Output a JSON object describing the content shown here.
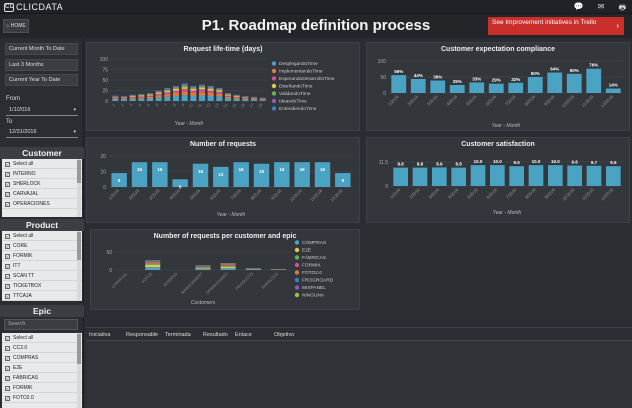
{
  "app": {
    "brand": "CLICDATA",
    "brand_mark": "CD"
  },
  "header": {
    "home_label": "HOME",
    "title": "P1. Roadmap definition process",
    "improve_button": "See Improvement initiatives in Trello"
  },
  "sidebar": {
    "quick_ranges": [
      "Current Month To Date",
      "Last 3 Months",
      "Current Year To Date"
    ],
    "from_label": "From",
    "from_value": "1/1/2016",
    "to_label": "To",
    "to_value": "12/31/2016",
    "customer_title": "Customer",
    "customers": [
      "Select all",
      "INTERNO",
      "SHERLOCK",
      "CARVAJAL",
      "OPERACIONES"
    ],
    "product_title": "Product",
    "products": [
      "Select all",
      "CORE",
      "FORMIK",
      "ITT",
      "SCAN TT",
      "TICKETBOX",
      "TTCAJA"
    ],
    "epic_title": "Epic",
    "search_placeholder": "Search",
    "epics": [
      "Select all",
      "CC2.0",
      "COMPRAS",
      "E2E",
      "FÁBRICAS",
      "FORMIK",
      "FOTO2.0"
    ]
  },
  "panels": {
    "lifetime_title": "Request life-time (days)",
    "compliance_title": "Customer expectation compliance",
    "requests_title": "Number of requests",
    "satisfaction_title": "Customer satisfaction",
    "per_customer_title": "Number of requests per customer and epic"
  },
  "table": {
    "headers": [
      "Iniciativa",
      "Responsable",
      "Terminada",
      "Resultado",
      "Enlace",
      "Objetivo"
    ]
  },
  "colors": {
    "bar": "#4ba3c3",
    "accent_red": "#c9302c",
    "panel": "#33363b"
  },
  "chart_data": [
    {
      "type": "bar",
      "title": "Request life-time (days)",
      "xlabel": "Year - Month",
      "ylabel": "",
      "ylim": [
        0,
        100
      ],
      "yticks": [
        0,
        25,
        50,
        75,
        100
      ],
      "categories": [
        "1",
        "2",
        "3",
        "4",
        "5",
        "6",
        "7",
        "8",
        "9",
        "10",
        "11",
        "12",
        "13",
        "14",
        "15",
        "16",
        "17",
        "18"
      ],
      "series": [
        {
          "name": "DesplegandoTime",
          "color": "#4ba3c3",
          "values": [
            5,
            4,
            5,
            5,
            6,
            8,
            10,
            12,
            14,
            12,
            13,
            12,
            11,
            6,
            5,
            4,
            3,
            2
          ]
        },
        {
          "name": "ImplementandoTime",
          "color": "#e07b39",
          "values": [
            2,
            2,
            3,
            3,
            4,
            5,
            6,
            7,
            8,
            7,
            8,
            7,
            6,
            4,
            3,
            2,
            2,
            1
          ]
        },
        {
          "name": "EsperandoDesarrolloTime",
          "color": "#c9529a",
          "values": [
            2,
            2,
            2,
            3,
            3,
            4,
            5,
            6,
            7,
            6,
            7,
            6,
            5,
            3,
            2,
            2,
            1,
            1
          ]
        },
        {
          "name": "DiseñandoTime",
          "color": "#e8c547",
          "values": [
            1,
            1,
            2,
            2,
            2,
            3,
            3,
            4,
            4,
            4,
            4,
            4,
            3,
            2,
            2,
            1,
            1,
            1
          ]
        },
        {
          "name": "ValidandoTime",
          "color": "#67b34f",
          "values": [
            1,
            1,
            1,
            2,
            2,
            2,
            3,
            3,
            4,
            3,
            3,
            3,
            3,
            2,
            1,
            1,
            1,
            1
          ]
        },
        {
          "name": "IdeandoTime",
          "color": "#8e5ab8",
          "values": [
            1,
            1,
            1,
            1,
            1,
            2,
            2,
            2,
            3,
            2,
            2,
            2,
            2,
            1,
            1,
            1,
            1,
            1
          ]
        },
        {
          "name": "EntendiendoTime",
          "color": "#3f7fbf",
          "values": [
            1,
            1,
            1,
            1,
            1,
            1,
            2,
            2,
            2,
            2,
            2,
            2,
            1,
            1,
            1,
            1,
            1,
            1
          ]
        }
      ]
    },
    {
      "type": "bar",
      "title": "Customer expectation compliance",
      "xlabel": "Year - Month",
      "ylim": [
        0,
        100
      ],
      "yticks": [
        0,
        50,
        100
      ],
      "categories": [
        "1/2016",
        "2/2016",
        "3/2016",
        "4/2016",
        "5/2016",
        "6/2016",
        "7/2016",
        "8/2016",
        "9/2016",
        "10/2016",
        "11/2016",
        "12/2016"
      ],
      "values": [
        56,
        44,
        39,
        25,
        33,
        29,
        32,
        50,
        64,
        60,
        76,
        14
      ],
      "labels": [
        "56%",
        "44%",
        "39%",
        "25%",
        "33%",
        "29%",
        "32%",
        "50%",
        "64%",
        "60%",
        "76%",
        "14%"
      ]
    },
    {
      "type": "bar",
      "title": "Number of requests",
      "xlabel": "Year - Month",
      "ylim": [
        0,
        20
      ],
      "yticks": [
        0,
        10,
        20
      ],
      "categories": [
        "1/2016",
        "2/2016",
        "3/2016",
        "4/2016",
        "5/2016",
        "6/2016",
        "7/2016",
        "8/2016",
        "9/2016",
        "10/2016",
        "11/2016",
        "12/2016"
      ],
      "values": [
        9,
        16,
        16,
        5,
        15,
        13,
        16,
        15,
        16,
        16,
        16,
        9
      ]
    },
    {
      "type": "bar",
      "title": "Customer satisfaction",
      "xlabel": "Year - Month",
      "ylim": [
        0,
        11.5
      ],
      "yticks": [
        0,
        11.5
      ],
      "categories": [
        "1/2016",
        "2/2016",
        "3/2016",
        "4/2016",
        "5/2016",
        "6/2016",
        "7/2016",
        "8/2016",
        "9/2016",
        "10/2016",
        "11/2016",
        "12/2016"
      ],
      "values": [
        8.8,
        8.8,
        8.9,
        8.8,
        10.0,
        10.0,
        9.5,
        10.0,
        10.0,
        9.8,
        9.7,
        9.5
      ],
      "labels": [
        "8.8",
        "8.8",
        "8.9",
        "8.8",
        "10.0",
        "10.0",
        "9.5",
        "10.0",
        "10.0",
        "9.8",
        "9.7",
        "9.5"
      ]
    },
    {
      "type": "bar",
      "title": "Number of requests per customer and epic",
      "xlabel": "Customers",
      "ylim": [
        0,
        50
      ],
      "yticks": [
        0,
        50
      ],
      "categories": [
        "CARVAJAL",
        "FOTO2",
        "INTERNO",
        "MANAGEMENT",
        "OPERACIONES",
        "PRODUCTO",
        "SHERLOCK"
      ],
      "legend": [
        "COMPRAS",
        "E2E",
        "FÁBRICAS",
        "FORMIK",
        "FOTO2.0",
        "FROGROARD",
        "MIXPANEL",
        "NINGUNA"
      ],
      "legend_colors": [
        "#4ba3c3",
        "#e8c547",
        "#67b34f",
        "#c9529a",
        "#e07b39",
        "#3f7fbf",
        "#8e5ab8",
        "#9fbf4f"
      ],
      "values": [
        [
          0,
          0,
          0,
          0,
          0,
          0,
          0,
          0
        ],
        [
          8,
          6,
          4,
          3,
          2,
          2,
          1,
          1
        ],
        [
          0,
          0,
          0,
          0,
          0,
          0,
          0,
          0
        ],
        [
          3,
          2,
          2,
          2,
          1,
          1,
          1,
          1
        ],
        [
          5,
          4,
          3,
          2,
          2,
          1,
          1,
          1
        ],
        [
          2,
          1,
          1,
          1,
          0,
          0,
          0,
          0
        ],
        [
          1,
          1,
          0,
          0,
          0,
          0,
          0,
          0
        ]
      ]
    }
  ]
}
